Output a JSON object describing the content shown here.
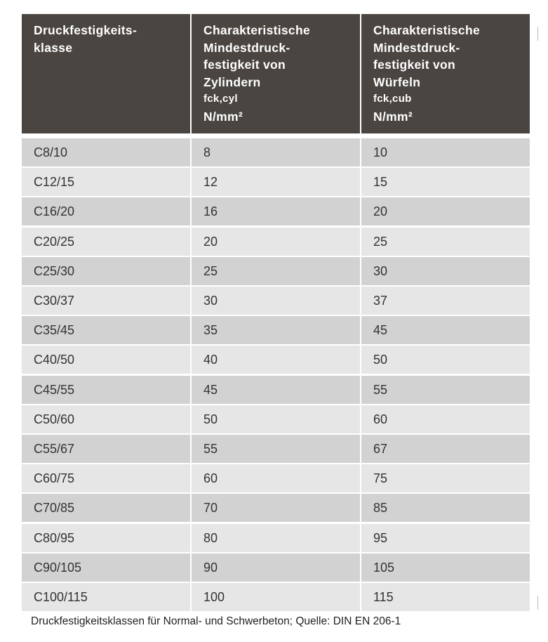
{
  "table": {
    "header": [
      [
        "Druckfestigkeits-",
        "klasse"
      ],
      [
        "Charakteristische",
        "Mindestdruck-",
        "festigkeit von",
        "Zylindern",
        "fck,cyl",
        "N/mm²"
      ],
      [
        "Charakteristische",
        "Mindestdruck-",
        "festigkeit von",
        "Würfeln",
        "fck,cub",
        "N/mm²"
      ]
    ],
    "rows": [
      [
        "C8/10",
        8,
        10
      ],
      [
        "C12/15",
        12,
        15
      ],
      [
        "C16/20",
        16,
        20
      ],
      [
        "C20/25",
        20,
        25
      ],
      [
        "C25/30",
        25,
        30
      ],
      [
        "C30/37",
        30,
        37
      ],
      [
        "C35/45",
        35,
        45
      ],
      [
        "C40/50",
        40,
        50
      ],
      [
        "C45/55",
        45,
        55
      ],
      [
        "C50/60",
        50,
        60
      ],
      [
        "C55/67",
        55,
        67
      ],
      [
        "C60/75",
        60,
        75
      ],
      [
        "C70/85",
        70,
        85
      ],
      [
        "C80/95",
        80,
        95
      ],
      [
        "C90/105",
        90,
        105
      ],
      [
        "C100/115",
        100,
        115
      ]
    ],
    "caption": "Druckfestigkeitsklassen für Normal- und Schwerbeton; Quelle: DIN EN 206-1"
  }
}
